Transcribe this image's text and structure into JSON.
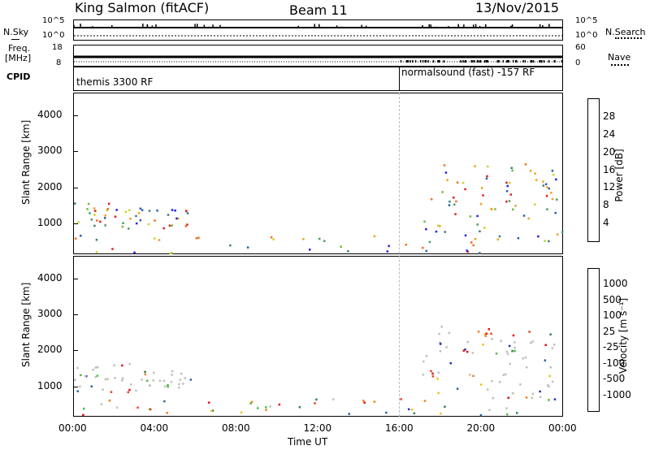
{
  "header": {
    "title": "King Salmon (fitACF)",
    "beam": "Beam 11",
    "date": "13/Nov/2015"
  },
  "top_panels": {
    "nsky_label": "N.Sky",
    "nsky_ticks": [
      "10^5",
      "10^0"
    ],
    "nsearch_label": "N.Search",
    "nsearch_ticks": [
      "10^5",
      "10^0"
    ],
    "freq_label": "Freq.",
    "freq_unit": "[MHz]",
    "freq_ticks": [
      "18",
      "8"
    ],
    "nave_label": "Nave",
    "nave_ticks": [
      "60",
      "0"
    ],
    "cpid_label": "CPID",
    "cpid_segments": [
      "themis 3300 RF",
      "normalsound (fast) -157 RF"
    ]
  },
  "colors": {
    "power_scale": [
      "#1f1fe6",
      "#285fb0",
      "#3a7f7f",
      "#45a060",
      "#6bbf3a",
      "#c8d22a",
      "#f0a020",
      "#f07020",
      "#e02020"
    ],
    "velocity_scale": [
      "#2030c0",
      "#2f5fa8",
      "#2f8060",
      "#4bbf3a",
      "#c0c0b8",
      "#c0c0b8",
      "#f0c020",
      "#f08020",
      "#f04020",
      "#e01010"
    ]
  },
  "chart_data": [
    {
      "type": "heatmap",
      "panel": "power",
      "ylabel": "Slant Range [km]",
      "x_ticks": [
        "00:00",
        "04:00",
        "08:00",
        "12:00",
        "16:00",
        "20:00",
        "00:00"
      ],
      "y_ticks": [
        4000,
        3000,
        2000,
        1000
      ],
      "xlim": [
        0,
        24
      ],
      "ylim": [
        180,
        4600
      ],
      "colorbar": {
        "label": "Power [dB]",
        "ticks": [
          "28",
          "24",
          "20",
          "16",
          "12",
          "8",
          "4"
        ]
      },
      "scatter_regions": [
        {
          "t0": 0.0,
          "t1": 2.9,
          "r0": 850,
          "r1": 1650,
          "level": 0.55
        },
        {
          "t0": 3.0,
          "t1": 5.8,
          "r0": 900,
          "r1": 1450,
          "level": 0.45
        },
        {
          "t0": 17.0,
          "t1": 24.0,
          "r0": 700,
          "r1": 2000,
          "level": 0.5
        },
        {
          "t0": 17.5,
          "t1": 23.8,
          "r0": 2000,
          "r1": 2700,
          "level": 0.3
        },
        {
          "t0": 0.0,
          "t1": 24.0,
          "r0": 200,
          "r1": 700,
          "level": 0.35
        }
      ]
    },
    {
      "type": "heatmap",
      "panel": "velocity",
      "ylabel": "Slant Range [km]",
      "xlabel": "Time UT",
      "x_ticks": [
        "00:00",
        "04:00",
        "08:00",
        "12:00",
        "16:00",
        "20:00",
        "00:00"
      ],
      "y_ticks": [
        4000,
        3000,
        2000,
        1000
      ],
      "xlim": [
        0,
        24
      ],
      "ylim": [
        180,
        4600
      ],
      "colorbar": {
        "label": "Velocity [m s⁻¹]",
        "ticks": [
          "1000",
          "500",
          "100",
          "25",
          "-25",
          "-100",
          "-500",
          "-1000"
        ]
      },
      "scatter_regions": [
        {
          "t0": 0.0,
          "t1": 2.9,
          "r0": 850,
          "r1": 1650,
          "level": 0.5
        },
        {
          "t0": 3.0,
          "t1": 5.8,
          "r0": 900,
          "r1": 1450,
          "level": 0.5
        },
        {
          "t0": 17.0,
          "t1": 24.0,
          "r0": 700,
          "r1": 2000,
          "level": 0.5
        },
        {
          "t0": 17.5,
          "t1": 23.8,
          "r0": 2000,
          "r1": 2700,
          "level": 0.6
        },
        {
          "t0": 0.0,
          "t1": 24.0,
          "r0": 200,
          "r1": 700,
          "level": 0.4
        }
      ]
    }
  ]
}
